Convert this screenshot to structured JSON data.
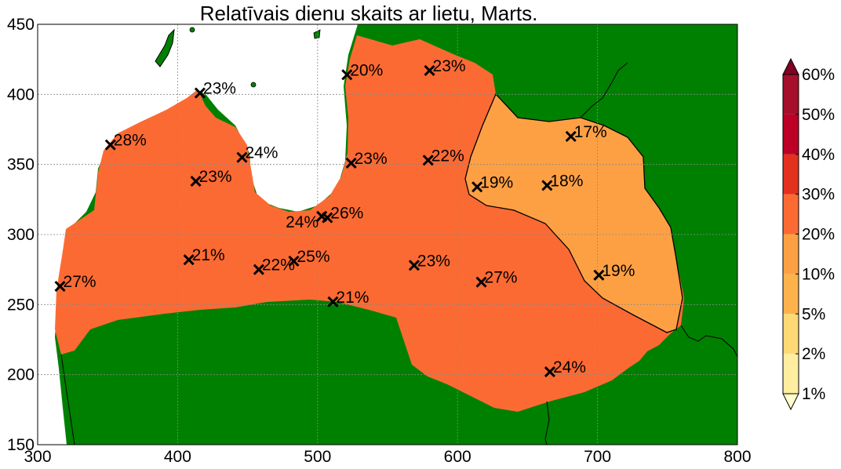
{
  "title": "Relatīvais dienu skaits ar lietu, Marts.",
  "colors": {
    "land_outside": "#008000",
    "sea": "#ffffff",
    "zone_20_30": "#fc6a33",
    "zone_10_20": "#fda044"
  },
  "chart_data": {
    "type": "map",
    "title": "Relatīvais dienu skaits ar lietu, Marts.",
    "xlim": [
      300,
      800
    ],
    "ylim": [
      150,
      450
    ],
    "x_ticks": [
      300,
      400,
      500,
      600,
      700,
      800
    ],
    "y_ticks": [
      150,
      200,
      250,
      300,
      350,
      400,
      450
    ],
    "grid": true,
    "stations": [
      {
        "x": 316,
        "y": 263,
        "label": "27%"
      },
      {
        "x": 352,
        "y": 364,
        "label": "28%"
      },
      {
        "x": 408,
        "y": 282,
        "label": "21%"
      },
      {
        "x": 413,
        "y": 338,
        "label": "23%"
      },
      {
        "x": 416,
        "y": 401,
        "label": "23%"
      },
      {
        "x": 446,
        "y": 355,
        "label": "24%"
      },
      {
        "x": 458,
        "y": 275,
        "label": "22%"
      },
      {
        "x": 483,
        "y": 281,
        "label": "25%"
      },
      {
        "x": 503,
        "y": 313,
        "label": "24%",
        "label_side": "left"
      },
      {
        "x": 507,
        "y": 312,
        "label": "26%"
      },
      {
        "x": 511,
        "y": 252,
        "label": "21%"
      },
      {
        "x": 521,
        "y": 414,
        "label": "20%"
      },
      {
        "x": 524,
        "y": 351,
        "label": "23%"
      },
      {
        "x": 569,
        "y": 278,
        "label": "23%"
      },
      {
        "x": 579,
        "y": 353,
        "label": "22%"
      },
      {
        "x": 580,
        "y": 417,
        "label": "23%"
      },
      {
        "x": 614,
        "y": 334,
        "label": "19%"
      },
      {
        "x": 617,
        "y": 266,
        "label": "27%"
      },
      {
        "x": 664,
        "y": 335,
        "label": "18%"
      },
      {
        "x": 666,
        "y": 202,
        "label": "24%"
      },
      {
        "x": 681,
        "y": 370,
        "label": "17%"
      },
      {
        "x": 701,
        "y": 271,
        "label": "19%"
      }
    ],
    "colorbar": {
      "labels": [
        "1%",
        "2%",
        "5%",
        "10%",
        "20%",
        "30%",
        "40%",
        "50%",
        "60%"
      ],
      "colors": [
        "#ffffcc",
        "#ffeda0",
        "#fed976",
        "#feb24c",
        "#fda044",
        "#fc6a33",
        "#e3301f",
        "#bd0026",
        "#a50f2b",
        "#800026"
      ]
    }
  }
}
